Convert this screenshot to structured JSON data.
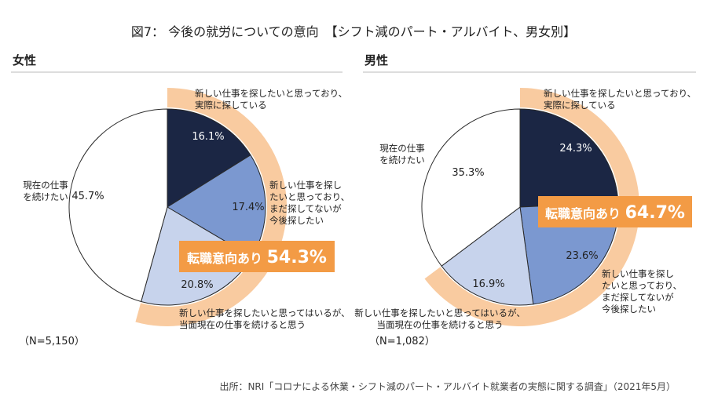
{
  "title": "図7： 今後の就労についての意向　【シフト減のパート・アルバイト、男女別】",
  "source": "出所：NRI「コロナによる休業・シフト減のパート・アルバイト就業者の実態に関する調査」（2021年5月）",
  "colors": {
    "navy": "#1b2644",
    "medium_blue": "#7b98d0",
    "light_blue": "#c7d3ec",
    "white": "#ffffff",
    "orange": "#f39b45",
    "peach": "#f9cba0"
  },
  "chart_data": [
    {
      "type": "pie",
      "title": "女性",
      "n_label": "（N=5,150）",
      "slices": [
        {
          "label": "新しい仕事を探したいと思っており、実際に探している",
          "value": 16.1,
          "value_label": "16.1%",
          "color": "#1b2644"
        },
        {
          "label": "新しい仕事を探したいと思っており、まだ探してないが今後探したい",
          "value": 17.4,
          "value_label": "17.4%",
          "color": "#7b98d0"
        },
        {
          "label": "新しい仕事を探したいと思ってはいるが、当面現在の仕事を続けると思う",
          "value": 20.8,
          "value_label": "20.8%",
          "color": "#c7d3ec"
        },
        {
          "label": "現在の仕事を続けたい",
          "value": 45.7,
          "value_label": "45.7%",
          "color": "#ffffff"
        }
      ],
      "highlight": {
        "label": "転職意向あり",
        "value_label": "54.3%",
        "value": 54.3
      },
      "annotations": {
        "search_now": [
          "新しい仕事を探したいと思っており、",
          "実際に探している"
        ],
        "search_future": [
          "新しい仕事を探し",
          "たいと思っており、",
          "まだ探してないが",
          "今後探したい"
        ],
        "want_but_continue": [
          "新しい仕事を探したいと思ってはいるが、",
          "当面現在の仕事を続けると思う"
        ],
        "continue": [
          "現在の仕事",
          "を続けたい"
        ]
      }
    },
    {
      "type": "pie",
      "title": "男性",
      "n_label": "（N=1,082）",
      "slices": [
        {
          "label": "新しい仕事を探したいと思っており、実際に探している",
          "value": 24.3,
          "value_label": "24.3%",
          "color": "#1b2644"
        },
        {
          "label": "新しい仕事を探したいと思っており、まだ探してないが今後探したい",
          "value": 23.6,
          "value_label": "23.6%",
          "color": "#7b98d0"
        },
        {
          "label": "新しい仕事を探したいと思ってはいるが、当面現在の仕事を続けると思う",
          "value": 16.9,
          "value_label": "16.9%",
          "color": "#c7d3ec"
        },
        {
          "label": "現在の仕事を続けたい",
          "value": 35.3,
          "value_label": "35.3%",
          "color": "#ffffff"
        }
      ],
      "highlight": {
        "label": "転職意向あり",
        "value_label": "64.7%",
        "value": 64.7
      },
      "annotations": {
        "search_now": [
          "新しい仕事を探したいと思っており、",
          "実際に探している"
        ],
        "search_future": [
          "新しい仕事を探し",
          "たいと思っており、",
          "まだ探してないが",
          "今後探したい"
        ],
        "want_but_continue": [
          "新しい仕事を探したいと思ってはいるが、",
          "当面現在の仕事を続けると思う"
        ],
        "continue": [
          "現在の仕事",
          "を続けたい"
        ]
      }
    }
  ]
}
